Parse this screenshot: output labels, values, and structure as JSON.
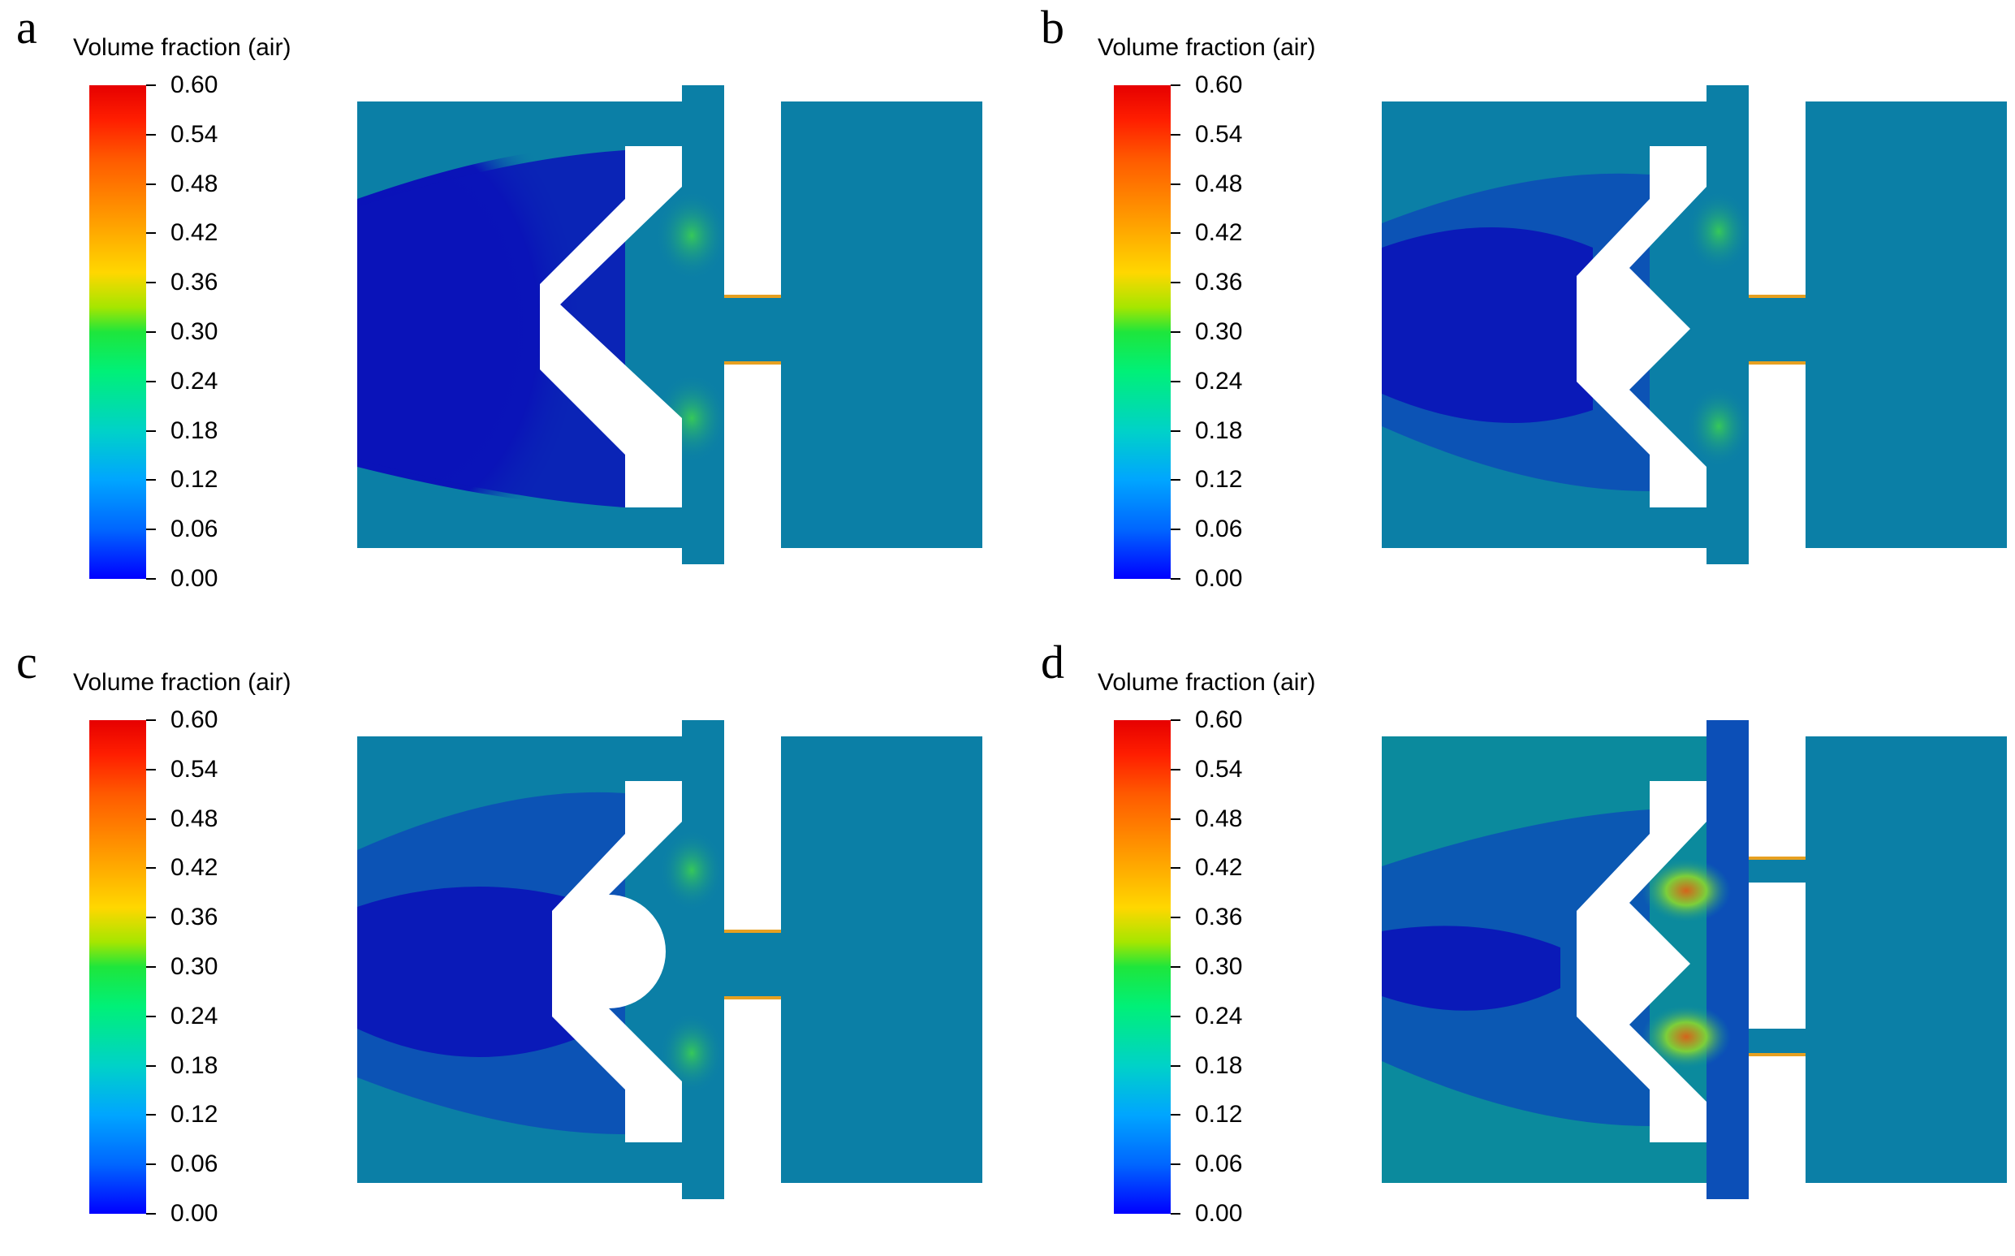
{
  "colorbar": {
    "title": "Volume fraction (air)",
    "ticks": [
      "0.60",
      "0.54",
      "0.48",
      "0.42",
      "0.36",
      "0.30",
      "0.24",
      "0.18",
      "0.12",
      "0.06",
      "0.00"
    ],
    "colors": {
      "min": "#0000ff",
      "mid": "#1ee63c",
      "max": "#e60000"
    }
  },
  "panels": [
    {
      "letter": "a"
    },
    {
      "letter": "b"
    },
    {
      "letter": "c"
    },
    {
      "letter": "d"
    }
  ],
  "field_colors": {
    "base": "#0b7fa6",
    "deep": "#0a14b8",
    "mid": "#0c4fb7",
    "green": "#2ec66a",
    "hot": "#d4641c",
    "white": "#ffffff"
  }
}
